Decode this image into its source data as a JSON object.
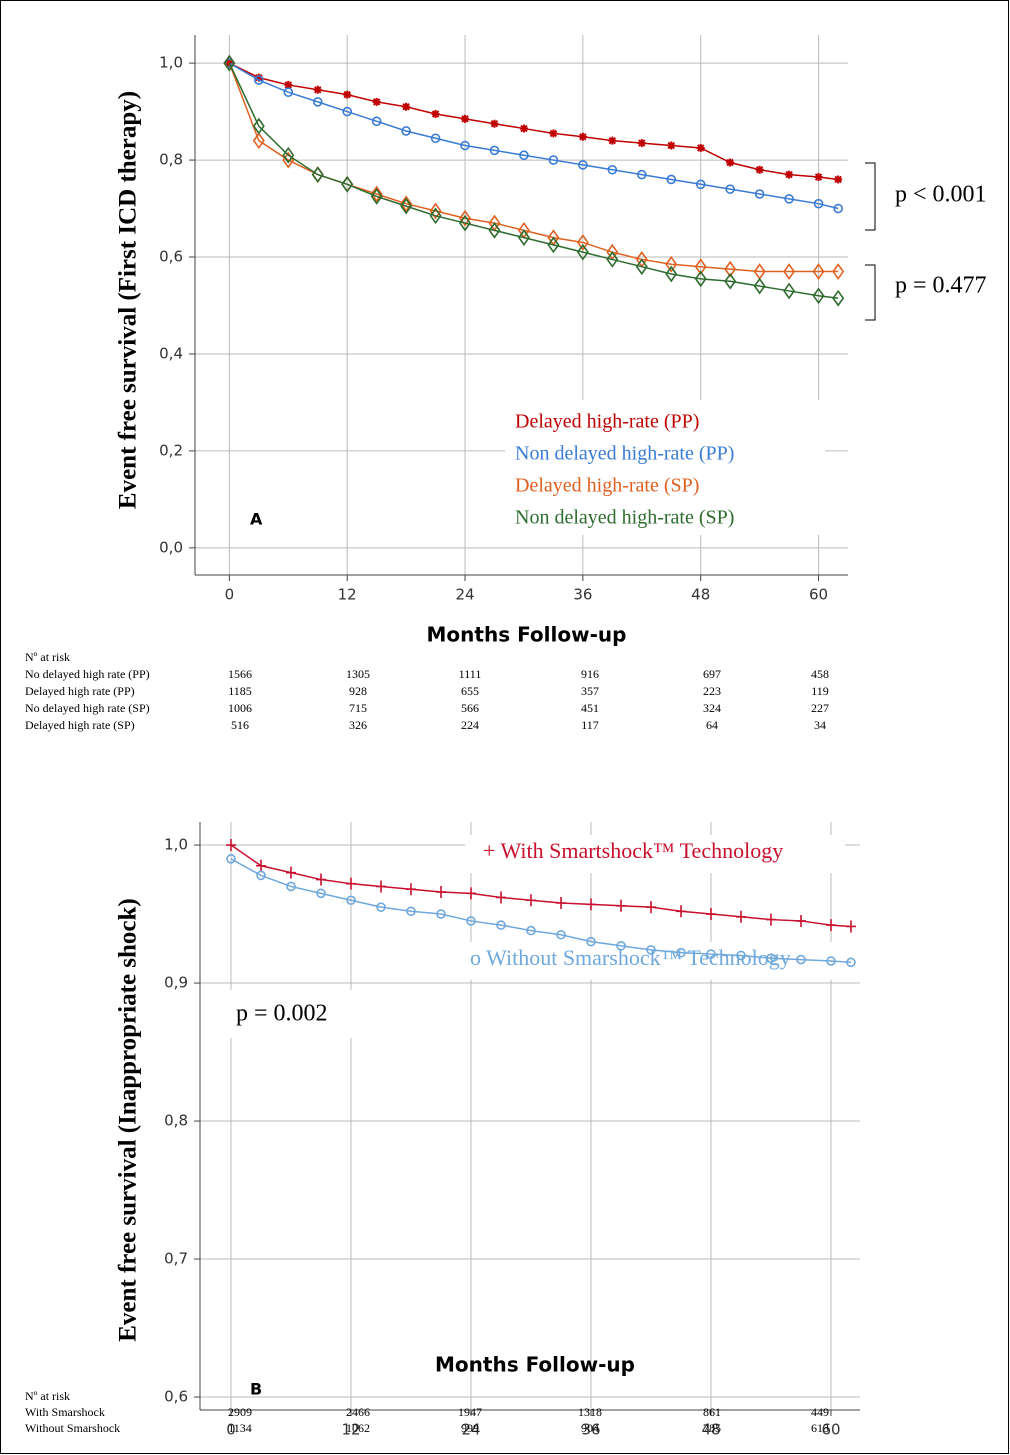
{
  "chart_data": [
    {
      "type": "line",
      "x_label": "Months Follow-up",
      "y_label": "Event free survival (First ICD therapy)",
      "x": [
        0,
        3,
        6,
        9,
        12,
        15,
        18,
        21,
        24,
        27,
        30,
        33,
        36,
        39,
        42,
        45,
        48,
        51,
        54,
        57,
        60,
        62
      ],
      "series": [
        {
          "name": "Delayed high-rate (PP)",
          "color": "#c00000",
          "marker": "star",
          "values": [
            1.0,
            0.97,
            0.955,
            0.945,
            0.935,
            0.92,
            0.91,
            0.895,
            0.885,
            0.875,
            0.865,
            0.855,
            0.848,
            0.84,
            0.835,
            0.83,
            0.825,
            0.795,
            0.78,
            0.77,
            0.765,
            0.76
          ]
        },
        {
          "name": "Non delayed high-rate (PP)",
          "color": "#3a7bd5",
          "marker": "circle",
          "values": [
            1.0,
            0.965,
            0.94,
            0.92,
            0.9,
            0.88,
            0.86,
            0.845,
            0.83,
            0.82,
            0.81,
            0.8,
            0.79,
            0.78,
            0.77,
            0.76,
            0.75,
            0.74,
            0.73,
            0.72,
            0.71,
            0.7
          ]
        },
        {
          "name": "Delayed high-rate (SP)",
          "color": "#e06020",
          "marker": "diamond",
          "values": [
            1.0,
            0.84,
            0.8,
            0.77,
            0.75,
            0.73,
            0.71,
            0.695,
            0.68,
            0.67,
            0.655,
            0.64,
            0.63,
            0.61,
            0.595,
            0.585,
            0.58,
            0.575,
            0.57,
            0.57,
            0.57,
            0.57
          ]
        },
        {
          "name": "Non delayed high-rate (SP)",
          "color": "#2e6b2e",
          "marker": "diamond",
          "values": [
            1.0,
            0.87,
            0.81,
            0.77,
            0.75,
            0.725,
            0.705,
            0.685,
            0.67,
            0.655,
            0.64,
            0.625,
            0.61,
            0.595,
            0.58,
            0.565,
            0.555,
            0.55,
            0.54,
            0.53,
            0.52,
            0.515
          ]
        }
      ],
      "xlim": [
        -3.5,
        63
      ],
      "xticks": [
        0,
        12,
        24,
        36,
        48,
        60
      ],
      "ylim": [
        -0.056,
        1.058
      ],
      "yticks": [
        {
          "value": 0,
          "label": "0,0"
        },
        {
          "value": 0.2,
          "label": "0,2"
        },
        {
          "value": 0.4,
          "label": "0,4"
        },
        {
          "value": 0.6,
          "label": "0,6"
        },
        {
          "value": 0.8,
          "label": "0,8"
        },
        {
          "value": 1.0,
          "label": "1,0"
        }
      ],
      "grid": true,
      "annotations": [
        "p < 0.001",
        "p = 0.477",
        "A"
      ],
      "risk_title": "Nº at risk",
      "risk_rows": [
        {
          "label": "No delayed high rate (PP)",
          "values": [
            1566,
            1305,
            1111,
            916,
            697,
            458
          ]
        },
        {
          "label": "Delayed high rate (PP)",
          "values": [
            1185,
            928,
            655,
            357,
            223,
            119
          ]
        },
        {
          "label": "No delayed high rate (SP)",
          "values": [
            1006,
            715,
            566,
            451,
            324,
            227
          ]
        },
        {
          "label": "Delayed high rate (SP)",
          "values": [
            516,
            326,
            224,
            117,
            64,
            34
          ]
        }
      ]
    },
    {
      "type": "line",
      "x_label": "Months Follow-up",
      "y_label": "Event free survival (Inappropriate shock)",
      "x": [
        0,
        3,
        6,
        9,
        12,
        15,
        18,
        21,
        24,
        27,
        30,
        33,
        36,
        39,
        42,
        45,
        48,
        51,
        54,
        57,
        60,
        62
      ],
      "series": [
        {
          "name": "+ With Smartshock™  Technology",
          "color": "#c8102e",
          "marker": "plus",
          "values": [
            1.0,
            0.985,
            0.98,
            0.975,
            0.972,
            0.97,
            0.968,
            0.966,
            0.965,
            0.962,
            0.96,
            0.958,
            0.957,
            0.956,
            0.955,
            0.952,
            0.95,
            0.948,
            0.946,
            0.945,
            0.942,
            0.941
          ]
        },
        {
          "name": "o Without Smarshock™  Technology",
          "color": "#6fa8dc",
          "marker": "circle",
          "values": [
            0.99,
            0.978,
            0.97,
            0.965,
            0.96,
            0.955,
            0.952,
            0.95,
            0.945,
            0.942,
            0.938,
            0.935,
            0.93,
            0.927,
            0.924,
            0.922,
            0.921,
            0.92,
            0.918,
            0.917,
            0.916,
            0.915
          ]
        }
      ],
      "xlim": [
        -3.1,
        62.9
      ],
      "xticks": [
        0,
        12,
        24,
        36,
        48,
        60
      ],
      "ylim": [
        0.5906,
        1.0167
      ],
      "yticks": [
        {
          "value": 0.6,
          "label": "0,6"
        },
        {
          "value": 0.7,
          "label": "0,7"
        },
        {
          "value": 0.8,
          "label": "0,8"
        },
        {
          "value": 0.9,
          "label": "0,9"
        },
        {
          "value": 1.0,
          "label": "1,0"
        }
      ],
      "grid": true,
      "annotations": [
        "p = 0.002",
        "B"
      ],
      "risk_title": "Nº at risk",
      "risk_rows": [
        {
          "label": "With Smarshock",
          "values": [
            2909,
            2466,
            1947,
            1318,
            861,
            449
          ]
        },
        {
          "label": "Without Smarshock",
          "values": [
            1134,
            1062,
            999,
            904,
            785,
            613
          ]
        }
      ]
    }
  ]
}
